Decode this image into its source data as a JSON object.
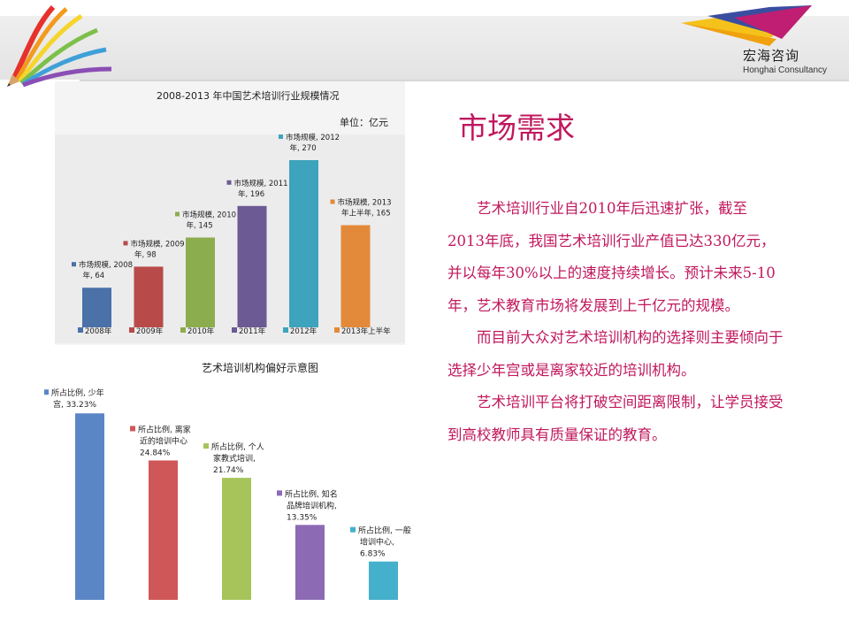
{
  "header": {
    "logo_cn": "宏海咨询",
    "logo_en": "Honghai Consultancy"
  },
  "slide": {
    "title": "市场需求",
    "paragraphs": [
      "艺术培训行业自2010年后迅速扩张，截至2013年底，我国艺术培训行业产值已达330亿元，并以每年30%以上的速度持续增长。预计未来5-10年，艺术教育市场将发展到上千亿元的规模。",
      "而目前大众对艺术培训机构的选择则主要倾向于选择少年宫或是离家较近的培训机构。",
      "艺术培训平台将打破空间距离限制，让学员接受到高校教师具有质量保证的教育。"
    ]
  },
  "chart_data": [
    {
      "type": "bar",
      "title": "2008-2013 年中国艺术培训行业规模情况",
      "unit_label": "单位：亿元",
      "categories": [
        "2008年",
        "2009年",
        "2010年",
        "2011年",
        "2012年",
        "2013年上半年"
      ],
      "values": [
        64,
        98,
        145,
        196,
        270,
        165
      ],
      "data_labels": [
        [
          "市场规模, 2008",
          "年, 64"
        ],
        [
          "市场规模, 2009",
          "年, 98"
        ],
        [
          "市场规模, 2010",
          "年, 145"
        ],
        [
          "市场规模, 2011",
          "年, 196"
        ],
        [
          "市场规模, 2012",
          "年, 270"
        ],
        [
          "市场规模, 2013",
          "年上半年, 165"
        ]
      ],
      "colors": [
        "#4a71a8",
        "#b84a4a",
        "#8cad4e",
        "#6c5a94",
        "#3ea3bd",
        "#e38a3a"
      ],
      "legend_position": "bottom",
      "ylim": [
        0,
        280
      ]
    },
    {
      "type": "bar",
      "title": "艺术培训机构偏好示意图",
      "categories": [
        "少年宫",
        "离家近的培训中心",
        "个人家教式培训",
        "知名品牌培训机构",
        "一般培训中心"
      ],
      "values": [
        33.23,
        24.84,
        21.74,
        13.35,
        6.83
      ],
      "data_labels": [
        [
          "所占比例, 少年",
          "宫, 33.23%"
        ],
        [
          "所占比例, 离家",
          "近的培训中心",
          "24.84%"
        ],
        [
          "所占比例, 个人",
          "家教式培训,",
          "21.74%"
        ],
        [
          "所占比例, 知名",
          "品牌培训机构,",
          "13.35%"
        ],
        [
          "所占比例, 一般",
          "培训中心,",
          "6.83%"
        ]
      ],
      "colors": [
        "#5b86c6",
        "#d05757",
        "#a6c45a",
        "#8c6bb4",
        "#44b0cc"
      ],
      "ylim": [
        0,
        35
      ]
    }
  ]
}
